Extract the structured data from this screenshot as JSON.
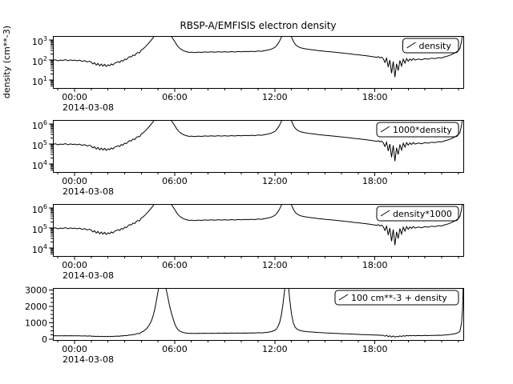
{
  "title": "RBSP-A/EMFISIS  electron density",
  "chart_data": {
    "type": "line",
    "line_color": "#000000",
    "x_range_hours": [
      -1.3,
      23.3
    ],
    "x_major_ticks_hours": [
      0,
      6,
      12,
      18
    ],
    "x_tick_labels": [
      "00:00",
      "06:00",
      "12:00",
      "18:00"
    ],
    "x_date_label": "2014-03-08",
    "x_hours": [
      -1.3,
      -1.15,
      -1,
      -0.85,
      -0.7,
      -0.55,
      -0.4,
      -0.25,
      -0.1,
      0,
      0.15,
      0.3,
      0.45,
      0.6,
      0.75,
      0.9,
      1,
      1.1,
      1.2,
      1.3,
      1.4,
      1.5,
      1.6,
      1.7,
      1.8,
      1.9,
      2,
      2.1,
      2.2,
      2.3,
      2.4,
      2.5,
      2.6,
      2.7,
      2.8,
      2.9,
      3,
      3.1,
      3.2,
      3.3,
      3.4,
      3.5,
      3.6,
      3.7,
      3.8,
      3.9,
      4,
      4.1,
      4.2,
      4.3,
      4.4,
      4.5,
      4.6,
      4.7,
      4.8,
      4.9,
      5,
      5.1,
      5.2,
      5.3,
      5.4,
      5.5,
      5.6,
      5.7,
      5.8,
      5.9,
      6,
      6.1,
      6.2,
      6.3,
      6.4,
      6.5,
      6.6,
      6.7,
      6.8,
      6.9,
      7,
      7.2,
      7.4,
      7.6,
      7.8,
      8,
      8.2,
      8.4,
      8.6,
      8.8,
      9,
      9.2,
      9.4,
      9.6,
      9.8,
      10,
      10.2,
      10.4,
      10.6,
      10.8,
      11,
      11.2,
      11.4,
      11.6,
      11.8,
      12,
      12.1,
      12.2,
      12.3,
      12.4,
      12.5,
      12.6,
      12.7,
      12.8,
      12.9,
      13,
      13.1,
      13.2,
      13.3,
      13.4,
      13.5,
      13.6,
      13.8,
      14,
      14.2,
      14.4,
      14.6,
      14.8,
      15,
      15.2,
      15.4,
      15.6,
      15.8,
      16,
      16.2,
      16.4,
      16.6,
      16.8,
      17,
      17.2,
      17.4,
      17.6,
      17.8,
      18,
      18.1,
      18.2,
      18.3,
      18.4,
      18.5,
      18.6,
      18.7,
      18.8,
      18.9,
      19,
      19.1,
      19.2,
      19.3,
      19.4,
      19.5,
      19.6,
      19.7,
      19.8,
      19.9,
      20,
      20.1,
      20.2,
      20.3,
      20.4,
      20.6,
      20.8,
      21,
      21.2,
      21.4,
      21.6,
      21.8,
      22,
      22.2,
      22.4,
      22.6,
      22.8,
      23,
      23.1,
      23.2,
      23.25,
      23.3
    ],
    "density_cm3": [
      95,
      104,
      92,
      100,
      96,
      105,
      93,
      102,
      95,
      100,
      92,
      99,
      86,
      94,
      80,
      88,
      78,
      64,
      74,
      56,
      68,
      52,
      63,
      50,
      61,
      48,
      58,
      52,
      64,
      57,
      70,
      75,
      82,
      76,
      95,
      88,
      112,
      104,
      130,
      150,
      142,
      178,
      168,
      215,
      240,
      228,
      320,
      360,
      430,
      520,
      640,
      800,
      1000,
      1300,
      1700,
      2200,
      2800,
      3400,
      3600,
      3500,
      3300,
      2900,
      2400,
      1900,
      1500,
      1150,
      850,
      620,
      470,
      390,
      340,
      305,
      280,
      262,
      250,
      242,
      252,
      238,
      252,
      242,
      256,
      246,
      258,
      248,
      262,
      250,
      262,
      252,
      266,
      254,
      268,
      258,
      272,
      262,
      276,
      266,
      286,
      276,
      296,
      318,
      356,
      430,
      520,
      680,
      950,
      1400,
      2100,
      3000,
      3600,
      3300,
      2300,
      1450,
      920,
      660,
      530,
      470,
      430,
      400,
      370,
      345,
      330,
      315,
      300,
      288,
      276,
      266,
      256,
      246,
      237,
      228,
      219,
      210,
      200,
      191,
      183,
      175,
      167,
      159,
      151,
      143,
      136,
      148,
      128,
      140,
      118,
      76,
      125,
      45,
      100,
      22,
      85,
      14,
      65,
      30,
      95,
      50,
      110,
      70,
      118,
      88,
      115,
      95,
      120,
      100,
      112,
      104,
      118,
      110,
      124,
      118,
      132,
      128,
      145,
      162,
      188,
      228,
      295,
      385,
      900,
      1700,
      3300
    ],
    "panels": [
      {
        "legend": "density",
        "ylabel": "density (cm**-3)",
        "scale": "log",
        "multiply": 1,
        "add": 0,
        "ylim": [
          4,
          1600
        ],
        "tick_exponents": [
          1,
          2,
          3
        ]
      },
      {
        "legend": "1000*density",
        "scale": "log",
        "multiply": 1000,
        "add": 0,
        "ylim": [
          4000,
          1600000
        ],
        "tick_exponents": [
          4,
          5,
          6
        ]
      },
      {
        "legend": "density*1000",
        "scale": "log",
        "multiply": 1000,
        "add": 0,
        "ylim": [
          4000,
          1600000
        ],
        "tick_exponents": [
          4,
          5,
          6
        ]
      },
      {
        "legend": "100 cm**-3 + density",
        "scale": "linear",
        "multiply": 1,
        "add": 100,
        "ylim": [
          -60,
          3120
        ],
        "yticks": [
          0,
          1000,
          2000,
          3000
        ],
        "minor_step": 250
      }
    ]
  }
}
